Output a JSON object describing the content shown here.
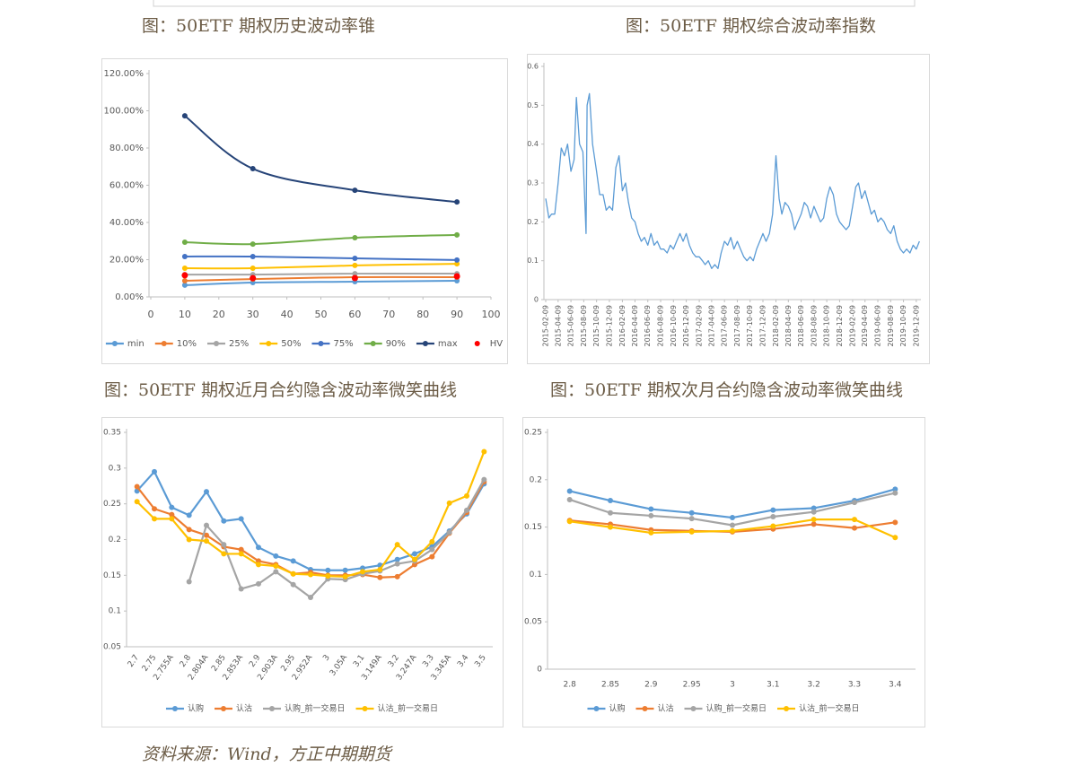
{
  "chart_data": [
    {
      "type": "line",
      "title": "图：50ETF 期权历史波动率锥",
      "smooth": true,
      "legend": "bottom",
      "x": [
        10,
        30,
        60,
        90
      ],
      "xlim": [
        0,
        100
      ],
      "xticks": [
        0,
        10,
        20,
        30,
        40,
        50,
        60,
        70,
        80,
        90,
        100
      ],
      "ylim": [
        0,
        120
      ],
      "yticks": [
        {
          "value": 0,
          "label": "0.00%"
        },
        {
          "value": 20,
          "label": "20.00%"
        },
        {
          "value": 40,
          "label": "40.00%"
        },
        {
          "value": 60,
          "label": "60.00%"
        },
        {
          "value": 80,
          "label": "80.00%"
        },
        {
          "value": 100,
          "label": "100.00%"
        },
        {
          "value": 120,
          "label": "120.00%"
        }
      ],
      "series": [
        {
          "name": "min",
          "color": "#5b9bd5",
          "values": [
            6.3,
            7.7,
            8.2,
            8.7
          ]
        },
        {
          "name": "10%",
          "color": "#ed7d31",
          "values": [
            8.7,
            9.6,
            10.6,
            10.6
          ]
        },
        {
          "name": "25%",
          "color": "#a5a5a5",
          "values": [
            12,
            12,
            12.5,
            12.5
          ]
        },
        {
          "name": "50%",
          "color": "#ffc000",
          "values": [
            15.4,
            15.4,
            16.9,
            17.8
          ]
        },
        {
          "name": "75%",
          "color": "#4472c4",
          "values": [
            21.7,
            21.7,
            20.7,
            19.8
          ]
        },
        {
          "name": "90%",
          "color": "#70ad47",
          "values": [
            29.4,
            28.4,
            31.8,
            33.3
          ]
        },
        {
          "name": "max",
          "color": "#264478",
          "values": [
            97.3,
            68.9,
            57.3,
            51
          ]
        },
        {
          "name": "HV",
          "color": "#ff0000",
          "line": false,
          "values": [
            11.6,
            10.1,
            10.1,
            11.1
          ]
        }
      ]
    },
    {
      "type": "line",
      "title": "图：50ETF 期权综合波动率指数",
      "color": "#5b9bd5",
      "x": [
        "2015-02-09",
        "2015-02-24",
        "2015-03-09",
        "2015-03-24",
        "2015-04-09",
        "2015-04-24",
        "2015-05-09",
        "2015-05-24",
        "2015-06-09",
        "2015-06-24",
        "2015-07-05",
        "2015-07-20",
        "2015-08-05",
        "2015-08-20",
        "2015-08-25",
        "2015-09-05",
        "2015-09-20",
        "2015-10-09",
        "2015-10-24",
        "2015-11-09",
        "2015-11-24",
        "2015-12-09",
        "2015-12-24",
        "2016-01-09",
        "2016-01-24",
        "2016-02-09",
        "2016-02-24",
        "2016-03-09",
        "2016-03-24",
        "2016-04-09",
        "2016-04-24",
        "2016-05-09",
        "2016-05-24",
        "2016-06-09",
        "2016-06-24",
        "2016-07-09",
        "2016-07-24",
        "2016-08-09",
        "2016-08-24",
        "2016-09-09",
        "2016-09-24",
        "2016-10-09",
        "2016-10-24",
        "2016-11-09",
        "2016-11-24",
        "2016-12-09",
        "2016-12-24",
        "2017-01-09",
        "2017-01-24",
        "2017-02-09",
        "2017-02-24",
        "2017-03-09",
        "2017-03-24",
        "2017-04-09",
        "2017-04-24",
        "2017-05-09",
        "2017-05-24",
        "2017-06-09",
        "2017-06-24",
        "2017-07-09",
        "2017-07-24",
        "2017-08-09",
        "2017-08-24",
        "2017-09-09",
        "2017-09-24",
        "2017-10-09",
        "2017-10-24",
        "2017-11-09",
        "2017-11-24",
        "2017-12-09",
        "2017-12-24",
        "2018-01-09",
        "2018-01-24",
        "2018-02-09",
        "2018-02-24",
        "2018-03-09",
        "2018-03-24",
        "2018-04-09",
        "2018-04-24",
        "2018-05-09",
        "2018-05-24",
        "2018-06-09",
        "2018-06-24",
        "2018-07-09",
        "2018-07-24",
        "2018-08-09",
        "2018-08-24",
        "2018-09-09",
        "2018-09-24",
        "2018-10-09",
        "2018-10-24",
        "2018-11-09",
        "2018-11-24",
        "2018-12-09",
        "2018-12-24",
        "2019-01-09",
        "2019-01-24",
        "2019-02-09",
        "2019-02-24",
        "2019-03-09",
        "2019-03-24",
        "2019-04-09",
        "2019-04-24",
        "2019-05-09",
        "2019-05-24",
        "2019-06-09",
        "2019-06-24",
        "2019-07-09",
        "2019-07-24",
        "2019-08-09",
        "2019-08-24",
        "2019-09-09",
        "2019-09-24",
        "2019-10-09",
        "2019-10-24",
        "2019-11-09",
        "2019-11-24",
        "2019-12-09",
        "2019-12-24"
      ],
      "values": [
        0.26,
        0.21,
        0.22,
        0.22,
        0.3,
        0.39,
        0.37,
        0.4,
        0.33,
        0.36,
        0.52,
        0.4,
        0.38,
        0.17,
        0.5,
        0.53,
        0.4,
        0.33,
        0.27,
        0.27,
        0.23,
        0.24,
        0.23,
        0.34,
        0.37,
        0.28,
        0.3,
        0.25,
        0.21,
        0.2,
        0.17,
        0.15,
        0.16,
        0.14,
        0.17,
        0.14,
        0.15,
        0.13,
        0.13,
        0.12,
        0.14,
        0.13,
        0.15,
        0.17,
        0.15,
        0.17,
        0.14,
        0.12,
        0.11,
        0.11,
        0.1,
        0.09,
        0.1,
        0.08,
        0.09,
        0.08,
        0.12,
        0.15,
        0.14,
        0.16,
        0.13,
        0.15,
        0.13,
        0.11,
        0.1,
        0.11,
        0.1,
        0.13,
        0.15,
        0.17,
        0.15,
        0.17,
        0.22,
        0.37,
        0.26,
        0.22,
        0.25,
        0.24,
        0.22,
        0.18,
        0.2,
        0.22,
        0.25,
        0.24,
        0.21,
        0.24,
        0.22,
        0.2,
        0.21,
        0.26,
        0.29,
        0.27,
        0.22,
        0.2,
        0.19,
        0.18,
        0.19,
        0.24,
        0.29,
        0.3,
        0.26,
        0.28,
        0.25,
        0.22,
        0.23,
        0.2,
        0.21,
        0.2,
        0.18,
        0.17,
        0.19,
        0.15,
        0.13,
        0.12,
        0.13,
        0.12,
        0.14,
        0.13,
        0.15
      ],
      "xlim": [
        "2015-02-09",
        "2019-12-31"
      ],
      "xticks": [
        "2015-02-09",
        "2015-04-09",
        "2015-06-09",
        "2015-08-09",
        "2015-10-09",
        "2015-12-09",
        "2016-02-09",
        "2016-04-09",
        "2016-06-09",
        "2016-08-09",
        "2016-10-09",
        "2016-12-09",
        "2017-02-09",
        "2017-04-09",
        "2017-06-09",
        "2017-08-09",
        "2017-10-09",
        "2017-12-09",
        "2018-02-09",
        "2018-04-09",
        "2018-06-09",
        "2018-08-09",
        "2018-10-09",
        "2018-12-09",
        "2019-02-09",
        "2019-04-09",
        "2019-06-09",
        "2019-08-09",
        "2019-10-09",
        "2019-12-09"
      ],
      "ylim": [
        0,
        0.6
      ],
      "yticks": [
        0,
        0.1,
        0.2,
        0.3,
        0.4,
        0.5,
        0.6
      ]
    },
    {
      "type": "line",
      "title": "图：50ETF 期权近月合约隐含波动率微笑曲线",
      "legend": "bottom",
      "categories": [
        "2.7",
        "2.75",
        "2.755A",
        "2.8",
        "2.804A",
        "2.85",
        "2.853A",
        "2.9",
        "2.903A",
        "2.95",
        "2.952A",
        "3",
        "3.05A",
        "3.1",
        "3.149A",
        "3.2",
        "3.247A",
        "3.3",
        "3.345A",
        "3.4",
        "3.5"
      ],
      "ylim": [
        0.05,
        0.35
      ],
      "yticks": [
        0.05,
        0.1,
        0.15,
        0.2,
        0.25,
        0.3,
        0.35
      ],
      "series": [
        {
          "name": "认购",
          "color": "#5b9bd5",
          "values": [
            0.268,
            0.295,
            0.245,
            0.234,
            0.267,
            0.226,
            0.229,
            0.189,
            0.177,
            0.17,
            0.158,
            0.157,
            0.157,
            0.16,
            0.164,
            0.172,
            0.18,
            0.19,
            0.212,
            0.236,
            0.278
          ]
        },
        {
          "name": "认沽",
          "color": "#ed7d31",
          "values": [
            0.274,
            0.243,
            0.235,
            0.214,
            0.206,
            0.19,
            0.186,
            0.17,
            0.165,
            0.152,
            0.154,
            0.15,
            0.15,
            0.151,
            0.147,
            0.148,
            0.165,
            0.176,
            0.209,
            0.238,
            0.281
          ]
        },
        {
          "name": "认购_前一交易日",
          "color": "#a5a5a5",
          "values": [
            null,
            null,
            null,
            0.141,
            0.22,
            0.193,
            0.131,
            0.138,
            0.155,
            0.137,
            0.119,
            0.145,
            0.144,
            0.152,
            0.156,
            0.166,
            0.17,
            0.186,
            0.21,
            0.241,
            0.284
          ]
        },
        {
          "name": "认沽_前一交易日",
          "color": "#ffc000",
          "values": [
            0.253,
            0.229,
            0.229,
            0.2,
            0.198,
            0.18,
            0.18,
            0.165,
            0.163,
            0.152,
            0.151,
            0.149,
            0.148,
            0.155,
            0.158,
            0.193,
            0.172,
            0.197,
            0.251,
            0.261,
            0.323
          ]
        }
      ]
    },
    {
      "type": "line",
      "title": "图：50ETF 期权次月合约隐含波动率微笑曲线",
      "legend": "bottom",
      "categories": [
        "2.8",
        "2.85",
        "2.9",
        "2.95",
        "3",
        "3.1",
        "3.2",
        "3.3",
        "3.4"
      ],
      "ylim": [
        0,
        0.25
      ],
      "yticks": [
        0,
        0.05,
        0.1,
        0.15,
        0.2,
        0.25
      ],
      "series": [
        {
          "name": "认购",
          "color": "#5b9bd5",
          "values": [
            0.188,
            0.178,
            0.169,
            0.165,
            0.16,
            0.168,
            0.17,
            0.178,
            0.19
          ]
        },
        {
          "name": "认沽",
          "color": "#ed7d31",
          "values": [
            0.157,
            0.153,
            0.147,
            0.146,
            0.145,
            0.148,
            0.153,
            0.149,
            0.155
          ]
        },
        {
          "name": "认购_前一交易日",
          "color": "#a5a5a5",
          "values": [
            0.179,
            0.165,
            0.162,
            0.159,
            0.152,
            0.161,
            0.166,
            0.176,
            0.186
          ]
        },
        {
          "name": "认沽_前一交易日",
          "color": "#ffc000",
          "values": [
            0.156,
            0.15,
            0.144,
            0.145,
            0.146,
            0.151,
            0.158,
            0.158,
            0.139
          ]
        }
      ]
    }
  ],
  "source": "资料来源：Wind，方正中期期货"
}
